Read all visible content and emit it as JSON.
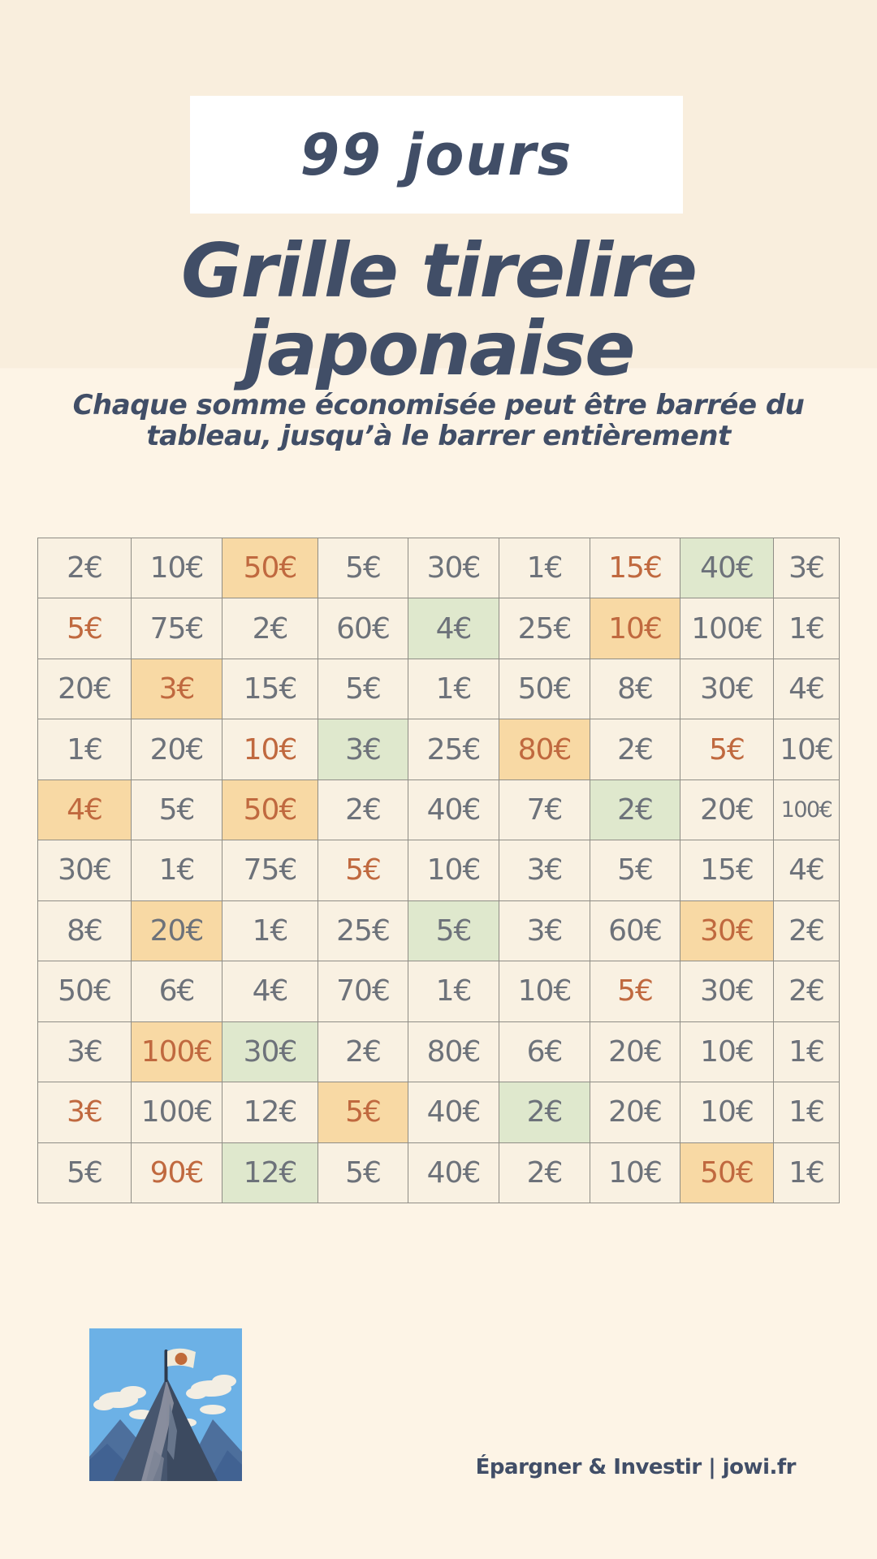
{
  "header": {
    "badge": "99 jours",
    "title_line1": "Grille tirelire",
    "title_line2": "japonaise",
    "subtitle_line1": "Chaque somme économisée peut être barrée du",
    "subtitle_line2": "tableau, jusqu’à le barrer entièrement"
  },
  "grid": {
    "rows": [
      [
        {
          "v": "2€"
        },
        {
          "v": "10€"
        },
        {
          "v": "50€",
          "bg": "orange",
          "fg": "orange"
        },
        {
          "v": "5€"
        },
        {
          "v": "30€"
        },
        {
          "v": "1€"
        },
        {
          "v": "15€",
          "fg": "orange"
        },
        {
          "v": "40€",
          "bg": "green"
        },
        {
          "v": "3€"
        }
      ],
      [
        {
          "v": "5€",
          "fg": "orange"
        },
        {
          "v": "75€"
        },
        {
          "v": "2€"
        },
        {
          "v": "60€"
        },
        {
          "v": "4€",
          "bg": "green"
        },
        {
          "v": "25€"
        },
        {
          "v": "10€",
          "bg": "orange",
          "fg": "orange"
        },
        {
          "v": "100€"
        },
        {
          "v": "1€"
        }
      ],
      [
        {
          "v": "20€"
        },
        {
          "v": "3€",
          "bg": "orange",
          "fg": "orange"
        },
        {
          "v": "15€"
        },
        {
          "v": "5€"
        },
        {
          "v": "1€"
        },
        {
          "v": "50€"
        },
        {
          "v": "8€"
        },
        {
          "v": "30€"
        },
        {
          "v": "4€"
        }
      ],
      [
        {
          "v": "1€"
        },
        {
          "v": "20€"
        },
        {
          "v": "10€",
          "fg": "orange"
        },
        {
          "v": "3€",
          "bg": "green"
        },
        {
          "v": "25€"
        },
        {
          "v": "80€",
          "bg": "orange",
          "fg": "orange"
        },
        {
          "v": "2€"
        },
        {
          "v": "5€",
          "fg": "orange"
        },
        {
          "v": "10€"
        }
      ],
      [
        {
          "v": "4€",
          "bg": "orange",
          "fg": "orange"
        },
        {
          "v": "5€"
        },
        {
          "v": "50€",
          "bg": "orange",
          "fg": "orange"
        },
        {
          "v": "2€"
        },
        {
          "v": "40€"
        },
        {
          "v": "7€"
        },
        {
          "v": "2€",
          "bg": "green"
        },
        {
          "v": "20€"
        },
        {
          "v": "100€",
          "small": true
        }
      ],
      [
        {
          "v": "30€"
        },
        {
          "v": "1€"
        },
        {
          "v": "75€"
        },
        {
          "v": "5€",
          "fg": "orange"
        },
        {
          "v": "10€"
        },
        {
          "v": "3€"
        },
        {
          "v": "5€"
        },
        {
          "v": "15€"
        },
        {
          "v": "4€"
        }
      ],
      [
        {
          "v": "8€"
        },
        {
          "v": "20€",
          "bg": "orange"
        },
        {
          "v": "1€"
        },
        {
          "v": "25€"
        },
        {
          "v": "5€",
          "bg": "green"
        },
        {
          "v": "3€"
        },
        {
          "v": "60€"
        },
        {
          "v": "30€",
          "bg": "orange",
          "fg": "orange"
        },
        {
          "v": "2€"
        }
      ],
      [
        {
          "v": "50€"
        },
        {
          "v": "6€"
        },
        {
          "v": "4€"
        },
        {
          "v": "70€"
        },
        {
          "v": "1€"
        },
        {
          "v": "10€"
        },
        {
          "v": "5€",
          "fg": "orange"
        },
        {
          "v": "30€"
        },
        {
          "v": "2€"
        }
      ],
      [
        {
          "v": "3€"
        },
        {
          "v": "100€",
          "bg": "orange",
          "fg": "orange"
        },
        {
          "v": "30€",
          "bg": "green"
        },
        {
          "v": "2€"
        },
        {
          "v": "80€"
        },
        {
          "v": "6€"
        },
        {
          "v": "20€"
        },
        {
          "v": "10€"
        },
        {
          "v": "1€"
        }
      ],
      [
        {
          "v": "3€",
          "fg": "orange"
        },
        {
          "v": "100€"
        },
        {
          "v": "12€"
        },
        {
          "v": "5€",
          "bg": "orange",
          "fg": "orange"
        },
        {
          "v": "40€"
        },
        {
          "v": "2€",
          "bg": "green"
        },
        {
          "v": "20€"
        },
        {
          "v": "10€"
        },
        {
          "v": "1€"
        }
      ],
      [
        {
          "v": "5€"
        },
        {
          "v": "90€",
          "fg": "orange"
        },
        {
          "v": "12€",
          "bg": "green"
        },
        {
          "v": "5€"
        },
        {
          "v": "40€"
        },
        {
          "v": "2€"
        },
        {
          "v": "10€"
        },
        {
          "v": "50€",
          "bg": "orange",
          "fg": "orange"
        },
        {
          "v": "1€"
        }
      ]
    ]
  },
  "footer": {
    "credit": "Épargner & Investir | jowi.fr"
  },
  "illustration": {
    "icon": "mountain-japanese-flag-illustration"
  },
  "colors": {
    "bg-top": "#f9eedd",
    "bg-bottom": "#fdf4e6",
    "badge-bg": "#ffffff",
    "ink": "#414e67",
    "cell-bg": "#f9f1e2",
    "cell-text": "#6d727a",
    "grid-line": "#8f8d86",
    "hl-orange": "#f8d9a4",
    "hl-green": "#dfe8cd",
    "accent-orange": "#c0693f",
    "sky-blue": "#6cb1e6",
    "flag-sun": "#c06a39"
  }
}
